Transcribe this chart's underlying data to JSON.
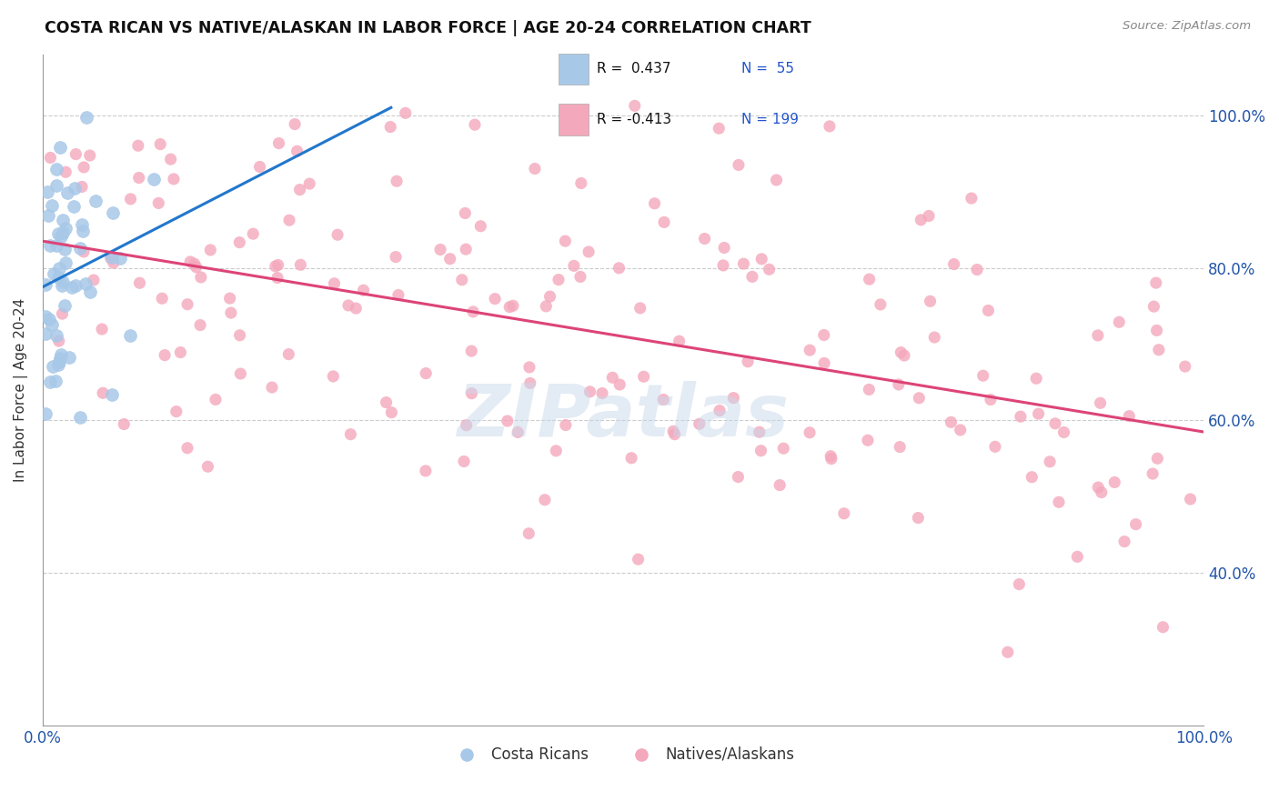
{
  "title": "COSTA RICAN VS NATIVE/ALASKAN IN LABOR FORCE | AGE 20-24 CORRELATION CHART",
  "source": "Source: ZipAtlas.com",
  "ylabel": "In Labor Force | Age 20-24",
  "xlim": [
    0.0,
    1.0
  ],
  "ylim": [
    0.2,
    1.08
  ],
  "yticks": [
    0.4,
    0.6,
    0.8,
    1.0
  ],
  "ytick_labels": [
    "40.0%",
    "60.0%",
    "80.0%",
    "100.0%"
  ],
  "blue_color": "#a8c8e8",
  "pink_color": "#f4a8bc",
  "blue_line_color": "#2277cc",
  "pink_line_color": "#dd4477",
  "watermark": "ZIPatlas",
  "watermark_color": "#c8d8ea",
  "background_color": "#ffffff",
  "legend_R_blue": "R =  0.437",
  "legend_N_blue": "N =  55",
  "legend_R_pink": "R = -0.413",
  "legend_N_pink": "N = 199",
  "blue_trendline": [
    0.0,
    0.3
  ],
  "blue_trendline_y": [
    0.775,
    1.01
  ],
  "pink_trendline": [
    0.0,
    1.0
  ],
  "pink_trendline_y": [
    0.835,
    0.585
  ]
}
